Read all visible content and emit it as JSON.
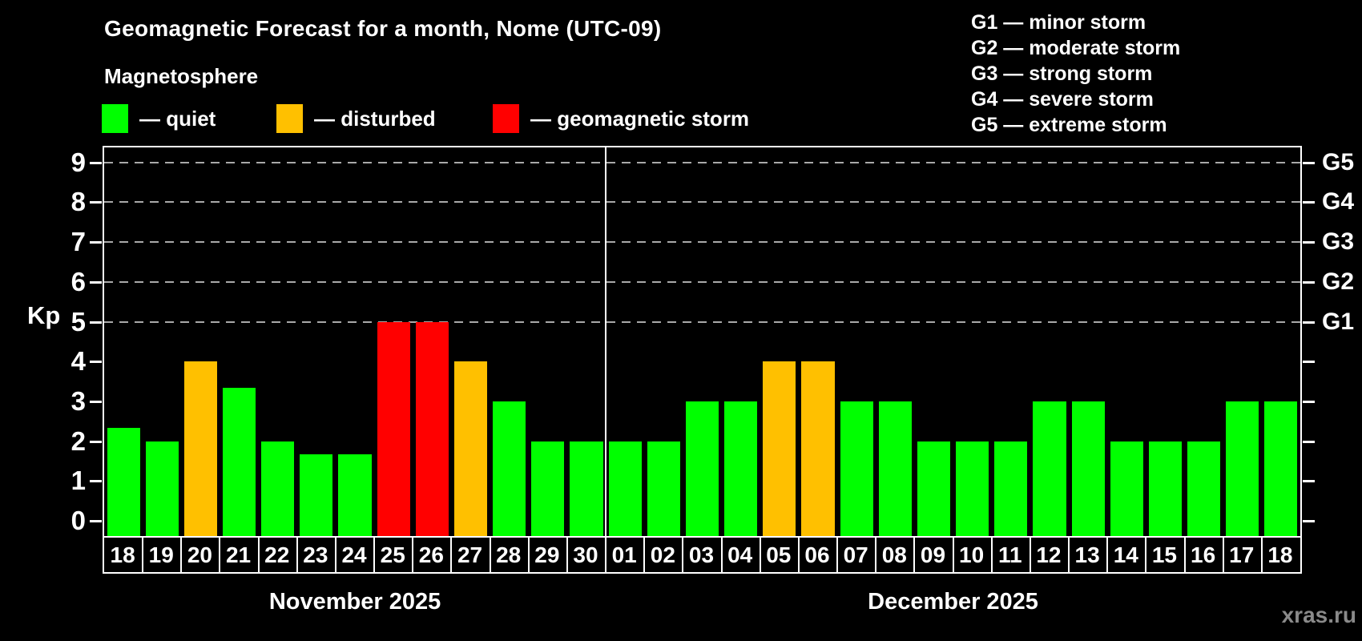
{
  "header": {
    "title": "Geomagnetic Forecast for a month, Nome (UTC-09)",
    "subtitle": "Magnetosphere"
  },
  "legend": {
    "items": [
      {
        "label": "— quiet",
        "status": "quiet",
        "color": "#00ff00"
      },
      {
        "label": "— disturbed",
        "status": "disturbed",
        "color": "#ffc000"
      },
      {
        "label": "— geomagnetic storm",
        "status": "storm",
        "color": "#ff0000"
      }
    ]
  },
  "g_legend": {
    "items": [
      "G1 — minor storm",
      "G2 — moderate storm",
      "G3 — strong storm",
      "G4 — severe storm",
      "G5 — extreme storm"
    ]
  },
  "watermark": "xras.ru",
  "chart_data": {
    "type": "bar",
    "ylabel": "Kp",
    "ylim": [
      0,
      9
    ],
    "yticks": [
      0,
      1,
      2,
      3,
      4,
      5,
      6,
      7,
      8,
      9
    ],
    "gridlines_at": [
      5,
      6,
      7,
      8,
      9
    ],
    "grid": "dashed",
    "right_axis_labels": [
      {
        "label": "G1",
        "kp": 5
      },
      {
        "label": "G2",
        "kp": 6
      },
      {
        "label": "G3",
        "kp": 7
      },
      {
        "label": "G4",
        "kp": 8
      },
      {
        "label": "G5",
        "kp": 9
      }
    ],
    "status_colors": {
      "quiet": "#00ff00",
      "disturbed": "#ffc000",
      "storm": "#ff0000"
    },
    "months": [
      {
        "label": "November 2025",
        "days": 13
      },
      {
        "label": "December 2025",
        "days": 18
      }
    ],
    "points": [
      {
        "month": "November 2025",
        "day": "18",
        "kp": 2.33,
        "status": "quiet"
      },
      {
        "month": "November 2025",
        "day": "19",
        "kp": 2,
        "status": "quiet"
      },
      {
        "month": "November 2025",
        "day": "20",
        "kp": 4,
        "status": "disturbed"
      },
      {
        "month": "November 2025",
        "day": "21",
        "kp": 3.33,
        "status": "quiet"
      },
      {
        "month": "November 2025",
        "day": "22",
        "kp": 2,
        "status": "quiet"
      },
      {
        "month": "November 2025",
        "day": "23",
        "kp": 1.67,
        "status": "quiet"
      },
      {
        "month": "November 2025",
        "day": "24",
        "kp": 1.67,
        "status": "quiet"
      },
      {
        "month": "November 2025",
        "day": "25",
        "kp": 5,
        "status": "storm"
      },
      {
        "month": "November 2025",
        "day": "26",
        "kp": 5,
        "status": "storm"
      },
      {
        "month": "November 2025",
        "day": "27",
        "kp": 4,
        "status": "disturbed"
      },
      {
        "month": "November 2025",
        "day": "28",
        "kp": 3,
        "status": "quiet"
      },
      {
        "month": "November 2025",
        "day": "29",
        "kp": 2,
        "status": "quiet"
      },
      {
        "month": "November 2025",
        "day": "30",
        "kp": 2,
        "status": "quiet"
      },
      {
        "month": "December 2025",
        "day": "01",
        "kp": 2,
        "status": "quiet"
      },
      {
        "month": "December 2025",
        "day": "02",
        "kp": 2,
        "status": "quiet"
      },
      {
        "month": "December 2025",
        "day": "03",
        "kp": 3,
        "status": "quiet"
      },
      {
        "month": "December 2025",
        "day": "04",
        "kp": 3,
        "status": "quiet"
      },
      {
        "month": "December 2025",
        "day": "05",
        "kp": 4,
        "status": "disturbed"
      },
      {
        "month": "December 2025",
        "day": "06",
        "kp": 4,
        "status": "disturbed"
      },
      {
        "month": "December 2025",
        "day": "07",
        "kp": 3,
        "status": "quiet"
      },
      {
        "month": "December 2025",
        "day": "08",
        "kp": 3,
        "status": "quiet"
      },
      {
        "month": "December 2025",
        "day": "09",
        "kp": 2,
        "status": "quiet"
      },
      {
        "month": "December 2025",
        "day": "10",
        "kp": 2,
        "status": "quiet"
      },
      {
        "month": "December 2025",
        "day": "11",
        "kp": 2,
        "status": "quiet"
      },
      {
        "month": "December 2025",
        "day": "12",
        "kp": 3,
        "status": "quiet"
      },
      {
        "month": "December 2025",
        "day": "13",
        "kp": 3,
        "status": "quiet"
      },
      {
        "month": "December 2025",
        "day": "14",
        "kp": 2,
        "status": "quiet"
      },
      {
        "month": "December 2025",
        "day": "15",
        "kp": 2,
        "status": "quiet"
      },
      {
        "month": "December 2025",
        "day": "16",
        "kp": 2,
        "status": "quiet"
      },
      {
        "month": "December 2025",
        "day": "17",
        "kp": 3,
        "status": "quiet"
      },
      {
        "month": "December 2025",
        "day": "18",
        "kp": 3,
        "status": "quiet"
      }
    ]
  }
}
